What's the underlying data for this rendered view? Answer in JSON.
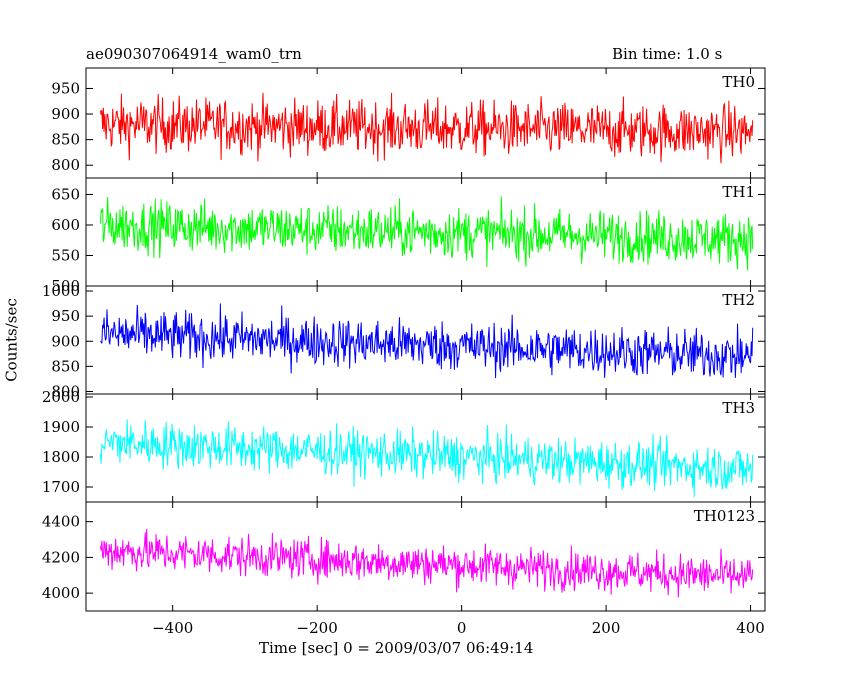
{
  "header": {
    "title": "ae090307064914_wam0_trn",
    "bin_time": "Bin time: 1.0 s"
  },
  "chart_data": {
    "type": "line",
    "title": "ae090307064914_wam0_trn",
    "xlabel": "Time [sec] 0 = 2009/03/07 06:49:14",
    "ylabel": "Counts/sec",
    "xlim": [
      -520,
      420
    ],
    "x_start": -500,
    "x_end": 403,
    "x_step": 1,
    "x_ticks": [
      -400,
      -200,
      0,
      200,
      400
    ],
    "x_tick_labels": [
      "−400",
      "−200",
      "0",
      "200",
      "400"
    ],
    "grid": false,
    "panels": [
      {
        "name": "TH0",
        "color": "#ff0000",
        "ylim": [
          775,
          990
        ],
        "y_ticks": [
          800,
          850,
          900,
          950
        ],
        "y_tick_labels": [
          "800",
          "850",
          "900",
          "950"
        ],
        "mean_start": 880,
        "mean_end": 865,
        "noise": 38
      },
      {
        "name": "TH1",
        "color": "#00ff00",
        "ylim": [
          500,
          677
        ],
        "y_ticks": [
          500,
          550,
          600,
          650
        ],
        "y_tick_labels": [
          "500",
          "550",
          "600",
          "650"
        ],
        "mean_start": 600,
        "mean_end": 577,
        "noise": 30
      },
      {
        "name": "TH2",
        "color": "#0000ff",
        "ylim": [
          795,
          1010
        ],
        "y_ticks": [
          800,
          850,
          900,
          950,
          1000
        ],
        "y_tick_labels": [
          "800",
          "850",
          "900",
          "950",
          "1000"
        ],
        "mean_start": 915,
        "mean_end": 870,
        "noise": 35
      },
      {
        "name": "TH3",
        "color": "#00ffff",
        "ylim": [
          1650,
          2010
        ],
        "y_ticks": [
          1700,
          1800,
          1900,
          2000
        ],
        "y_tick_labels": [
          "1700",
          "1800",
          "1900",
          "2000"
        ],
        "mean_start": 1850,
        "mean_end": 1760,
        "noise": 55
      },
      {
        "name": "TH0123",
        "color": "#ff00ff",
        "ylim": [
          3900,
          4510
        ],
        "y_ticks": [
          4000,
          4200,
          4400
        ],
        "y_tick_labels": [
          "4000",
          "4200",
          "4400"
        ],
        "mean_start": 4240,
        "mean_end": 4090,
        "noise": 80
      }
    ]
  }
}
